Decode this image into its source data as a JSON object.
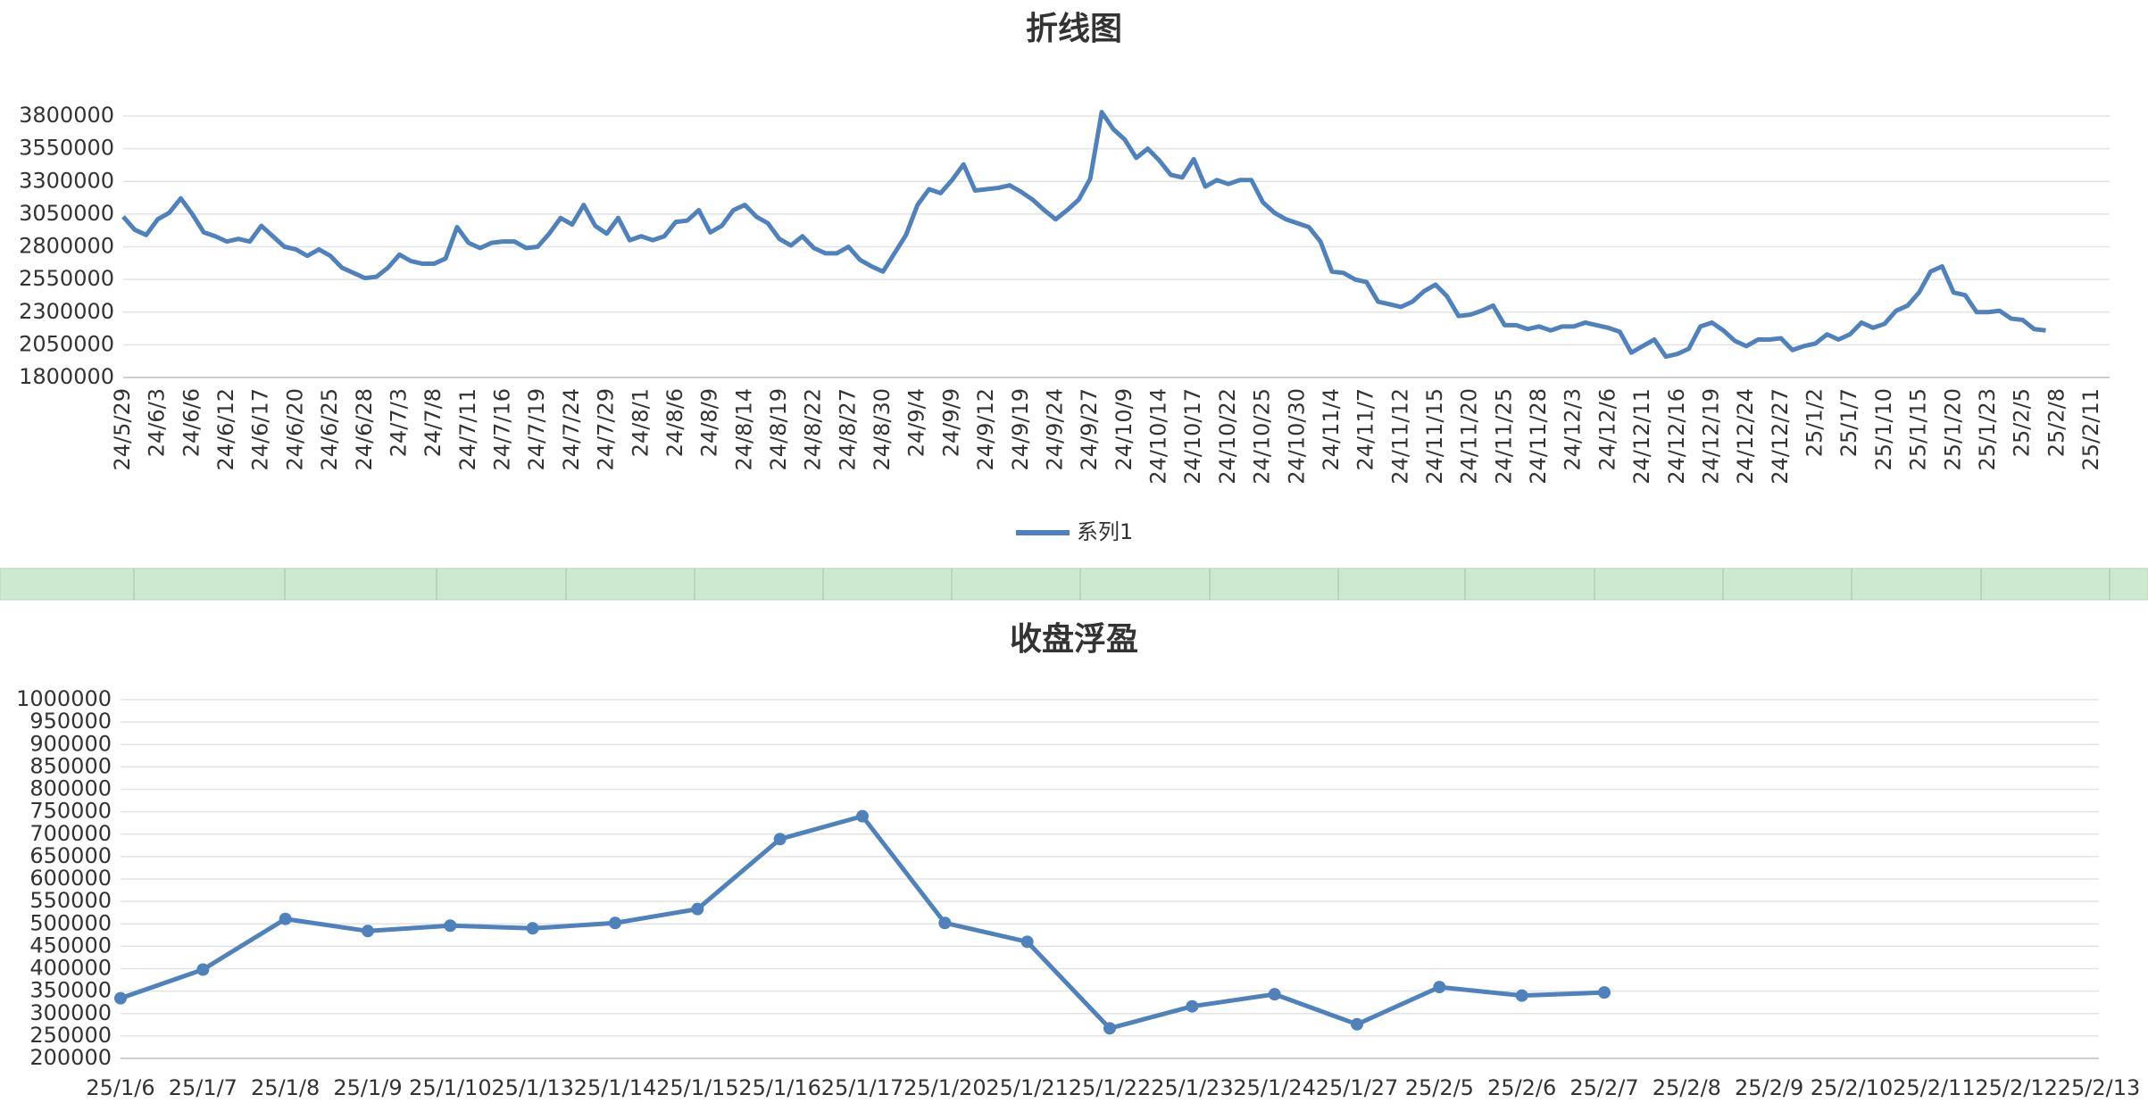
{
  "chart_data": [
    {
      "type": "line",
      "title": "折线图",
      "categories": [
        "24/5/29",
        null,
        null,
        "24/6/3",
        null,
        null,
        "24/6/6",
        null,
        null,
        "24/6/12",
        null,
        null,
        "24/6/17",
        null,
        null,
        "24/6/20",
        null,
        null,
        "24/6/25",
        null,
        null,
        "24/6/28",
        null,
        null,
        "24/7/3",
        null,
        null,
        "24/7/8",
        null,
        null,
        "24/7/11",
        null,
        null,
        "24/7/16",
        null,
        null,
        "24/7/19",
        null,
        null,
        "24/7/24",
        null,
        null,
        "24/7/29",
        null,
        null,
        "24/8/1",
        null,
        null,
        "24/8/6",
        null,
        null,
        "24/8/9",
        null,
        null,
        "24/8/14",
        null,
        null,
        "24/8/19",
        null,
        null,
        "24/8/22",
        null,
        null,
        "24/8/27",
        null,
        null,
        "24/8/30",
        null,
        null,
        "24/9/4",
        null,
        null,
        "24/9/9",
        null,
        null,
        "24/9/12",
        null,
        null,
        "24/9/19",
        null,
        null,
        "24/9/24",
        null,
        null,
        "24/9/27",
        null,
        null,
        "24/10/9",
        null,
        null,
        "24/10/14",
        null,
        null,
        "24/10/17",
        null,
        null,
        "24/10/22",
        null,
        null,
        "24/10/25",
        null,
        null,
        "24/10/30",
        null,
        null,
        "24/11/4",
        null,
        null,
        "24/11/7",
        null,
        null,
        "24/11/12",
        null,
        null,
        "24/11/15",
        null,
        null,
        "24/11/20",
        null,
        null,
        "24/11/25",
        null,
        null,
        "24/11/28",
        null,
        null,
        "24/12/3",
        null,
        null,
        "24/12/6",
        null,
        null,
        "24/12/11",
        null,
        null,
        "24/12/16",
        null,
        null,
        "24/12/19",
        null,
        null,
        "24/12/24",
        null,
        null,
        "24/12/27",
        null,
        null,
        "25/1/2",
        null,
        null,
        "25/1/7",
        null,
        null,
        "25/1/10",
        null,
        null,
        "25/1/15",
        null,
        null,
        "25/1/20",
        null,
        null,
        "25/1/23",
        null,
        null,
        "25/2/5",
        null,
        null,
        "25/2/8",
        null,
        null,
        "25/2/11"
      ],
      "series": [
        {
          "name": "系列1",
          "color": "#4f81bd",
          "values": [
            3030000,
            2930000,
            2890000,
            3010000,
            3060000,
            3170000,
            3050000,
            2910000,
            2880000,
            2840000,
            2860000,
            2840000,
            2960000,
            2880000,
            2800000,
            2780000,
            2730000,
            2780000,
            2730000,
            2640000,
            2600000,
            2560000,
            2570000,
            2640000,
            2740000,
            2690000,
            2670000,
            2670000,
            2710000,
            2950000,
            2830000,
            2790000,
            2830000,
            2840000,
            2840000,
            2790000,
            2800000,
            2900000,
            3020000,
            2970000,
            3120000,
            2960000,
            2900000,
            3020000,
            2850000,
            2880000,
            2850000,
            2880000,
            2990000,
            3000000,
            3080000,
            2910000,
            2960000,
            3080000,
            3120000,
            3030000,
            2980000,
            2860000,
            2810000,
            2880000,
            2790000,
            2750000,
            2750000,
            2800000,
            2700000,
            2650000,
            2610000,
            2750000,
            2890000,
            3120000,
            3240000,
            3210000,
            3310000,
            3430000,
            3230000,
            3240000,
            3250000,
            3270000,
            3220000,
            3160000,
            3080000,
            3010000,
            3080000,
            3160000,
            3320000,
            3830000,
            3700000,
            3620000,
            3480000,
            3550000,
            3460000,
            3350000,
            3330000,
            3470000,
            3260000,
            3310000,
            3280000,
            3310000,
            3310000,
            3140000,
            3060000,
            3010000,
            2980000,
            2950000,
            2840000,
            2610000,
            2600000,
            2550000,
            2530000,
            2380000,
            2360000,
            2340000,
            2380000,
            2460000,
            2510000,
            2420000,
            2270000,
            2280000,
            2310000,
            2350000,
            2200000,
            2200000,
            2170000,
            2190000,
            2160000,
            2190000,
            2190000,
            2220000,
            2200000,
            2180000,
            2150000,
            1990000,
            2040000,
            2090000,
            1960000,
            1980000,
            2020000,
            2190000,
            2220000,
            2160000,
            2080000,
            2040000,
            2090000,
            2090000,
            2100000,
            2010000,
            2040000,
            2060000,
            2130000,
            2090000,
            2130000,
            2220000,
            2180000,
            2210000,
            2310000,
            2350000,
            2450000,
            2610000,
            2650000,
            2450000,
            2430000,
            2300000,
            2300000,
            2310000,
            2250000,
            2240000,
            2170000,
            2160000,
            null,
            null,
            null,
            null
          ]
        }
      ],
      "ylim": [
        1800000,
        3800000
      ],
      "yticks": [
        1800000,
        2050000,
        2300000,
        2550000,
        2800000,
        3050000,
        3300000,
        3550000,
        3800000
      ],
      "grid": true,
      "legend": "bottom"
    },
    {
      "type": "line",
      "title": "收盘浮盈",
      "categories": [
        "25/1/6",
        "25/1/7",
        "25/1/8",
        "25/1/9",
        "25/1/10",
        "25/1/13",
        "25/1/14",
        "25/1/15",
        "25/1/16",
        "25/1/17",
        "25/1/20",
        "25/1/21",
        "25/1/22",
        "25/1/23",
        "25/1/24",
        "25/1/27",
        "25/2/5",
        "25/2/6",
        "25/2/7",
        "25/2/8",
        "25/2/9",
        "25/2/10",
        "25/2/11",
        "25/2/12",
        "25/2/13"
      ],
      "values": [
        334000,
        398000,
        511000,
        484000,
        496000,
        490000,
        502000,
        533000,
        689000,
        740000,
        502000,
        460000,
        267000,
        316000,
        343000,
        276000,
        359000,
        340000,
        347000,
        null,
        null,
        null,
        null,
        null,
        null
      ],
      "color": "#4f81bd",
      "markers": true,
      "ylim": [
        200000,
        1000000
      ],
      "yticks": [
        200000,
        250000,
        300000,
        350000,
        400000,
        450000,
        500000,
        550000,
        600000,
        650000,
        700000,
        750000,
        800000,
        850000,
        900000,
        950000,
        1000000
      ],
      "grid": true
    }
  ]
}
